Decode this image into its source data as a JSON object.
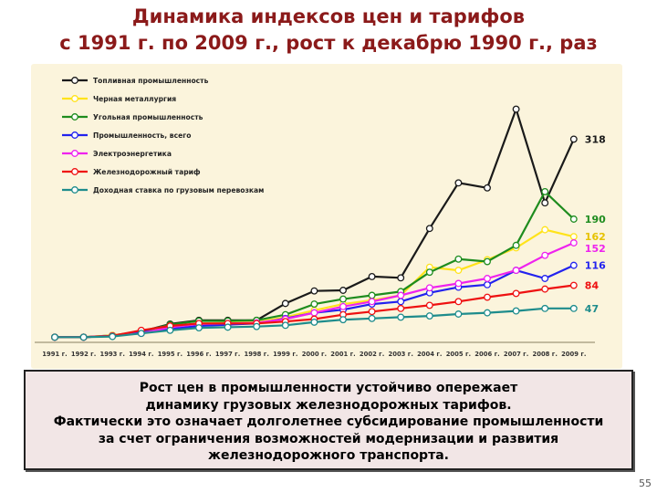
{
  "title_line1": "Динамика индексов цен и тарифов",
  "title_line2": "с 1991 г. по 2009 г., рост к декабрю 1990 г., раз",
  "note_lines": [
    "Рост цен в промышленности устойчиво опережает",
    "динамику грузовых железнодорожных тарифов.",
    "Фактически это означает долголетнее субсидирование промышленности",
    "за счет ограничения возможностей модернизации и развития",
    "железнодорожного транспорта."
  ],
  "page_number": "55",
  "chart_data": {
    "type": "line",
    "categories": [
      "1991 г.",
      "1992 г.",
      "1993 г.",
      "1994 г.",
      "1995 г.",
      "1996 г.",
      "1997 г.",
      "1998 г.",
      "1999 г.",
      "2000 г.",
      "2001 г.",
      "2002 г.",
      "2003 г.",
      "2004 г.",
      "2005 г.",
      "2006 г.",
      "2007 г.",
      "2008 г.",
      "2009 г."
    ],
    "ylim": [
      0,
      380
    ],
    "grid": false,
    "legend_position": "top-left",
    "background": "#fbf4dc",
    "series": [
      {
        "name": "Топливная промышленность",
        "color": "#1a1a1a",
        "values": [
          1,
          1,
          4,
          10,
          22,
          28,
          28,
          28,
          55,
          75,
          76,
          98,
          96,
          175,
          248,
          240,
          366,
          216,
          318
        ],
        "end_label": "318",
        "end_label_color": "#1a1a1a"
      },
      {
        "name": "Черная металлургия",
        "color": "#ffe31a",
        "values": [
          1,
          1,
          4,
          10,
          18,
          23,
          24,
          25,
          33,
          44,
          54,
          60,
          68,
          113,
          108,
          125,
          144,
          173,
          162
        ],
        "end_label": "162",
        "end_label_color": "#e6c200"
      },
      {
        "name": "Угольная промышленность",
        "color": "#1e8c1e",
        "values": [
          1,
          1,
          3,
          10,
          21,
          27,
          27,
          28,
          37,
          54,
          62,
          68,
          74,
          105,
          126,
          122,
          148,
          234,
          190
        ],
        "end_label": "190",
        "end_label_color": "#1e8c1e"
      },
      {
        "name": "Промышленность, всего",
        "color": "#2222ee",
        "values": [
          1,
          1,
          3,
          9,
          14,
          19,
          21,
          23,
          31,
          40,
          45,
          54,
          58,
          72,
          81,
          85,
          108,
          95,
          116
        ],
        "end_label": "116",
        "end_label_color": "#2222ee"
      },
      {
        "name": "Электроэнергетика",
        "color": "#ee22ee",
        "values": [
          1,
          1,
          3,
          7,
          17,
          22,
          23,
          24,
          30,
          40,
          50,
          58,
          68,
          80,
          87,
          95,
          108,
          132,
          152
        ],
        "end_label": "152",
        "end_label_color": "#ee22ee"
      },
      {
        "name": "Железнодорожный тариф",
        "color": "#ee1111",
        "values": [
          1,
          1,
          3,
          12,
          19,
          23,
          23,
          23,
          26,
          30,
          37,
          42,
          47,
          52,
          58,
          65,
          71,
          78,
          84
        ],
        "end_label": "84",
        "end_label_color": "#ee1111"
      },
      {
        "name": "Доходная ставка по грузовым перевозкам",
        "color": "#1e8c8c",
        "values": [
          1,
          1,
          2,
          7,
          12,
          16,
          17,
          18,
          20,
          25,
          29,
          31,
          33,
          35,
          38,
          40,
          43,
          47,
          47
        ],
        "end_label": "47",
        "end_label_color": "#1e8c8c"
      }
    ]
  }
}
